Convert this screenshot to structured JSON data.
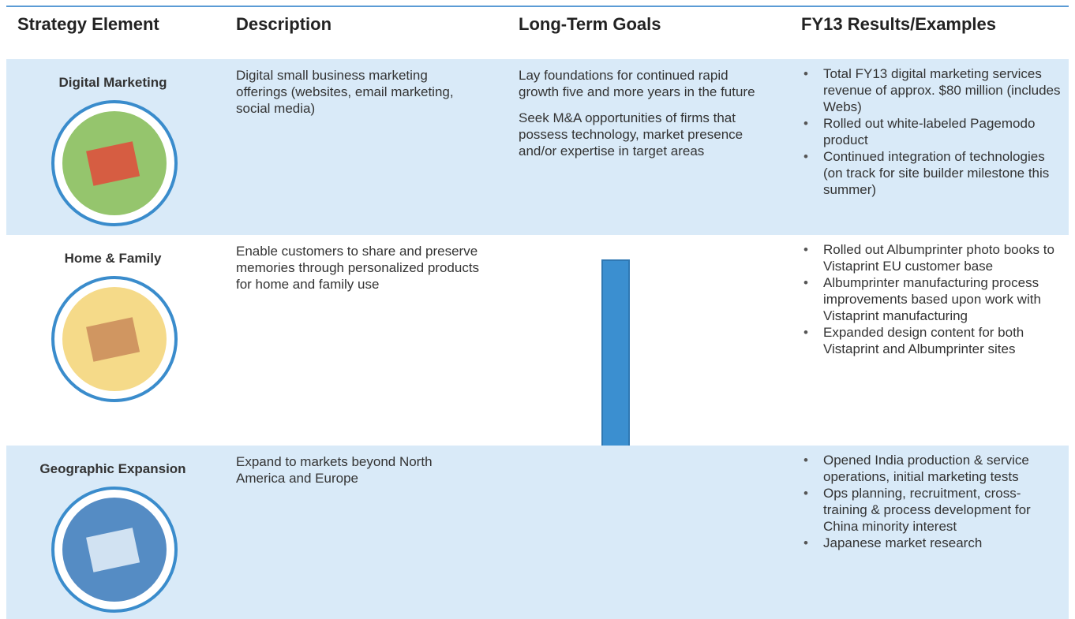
{
  "header": {
    "columns": [
      "Strategy Element",
      "Description",
      "Long-Term Goals",
      "FY13 Results/Examples"
    ]
  },
  "rows": [
    {
      "element": "Digital Marketing",
      "description": "Digital small business marketing offerings (websites, email marketing, social media)",
      "goals": [
        "Lay foundations for continued rapid growth five and more years in the future",
        "Seek M&A opportunities of firms that possess technology, market presence and/or expertise in target areas"
      ],
      "results": [
        "Total FY13 digital marketing services revenue of approx. $80 million (includes Webs)",
        "Rolled out white-labeled Pagemodo product",
        "Continued integration of technologies (on track for site builder milestone this summer)"
      ]
    },
    {
      "element": "Home & Family",
      "description": "Enable customers to share and preserve memories through personalized products for home and family use",
      "goals": [],
      "results": [
        "Rolled out Albumprinter photo books to Vistaprint EU customer base",
        "Albumprinter manufacturing process improvements based upon work with Vistaprint manufacturing",
        "Expanded design content  for both Vistaprint and Albumprinter sites"
      ]
    },
    {
      "element": "Geographic Expansion",
      "description": "Expand to markets beyond North America and Europe",
      "goals": [],
      "results": [
        "Opened India production & service operations, initial marketing tests",
        "Ops planning, recruitment, cross-training & process development for China minority interest",
        "Japanese market research"
      ]
    }
  ]
}
